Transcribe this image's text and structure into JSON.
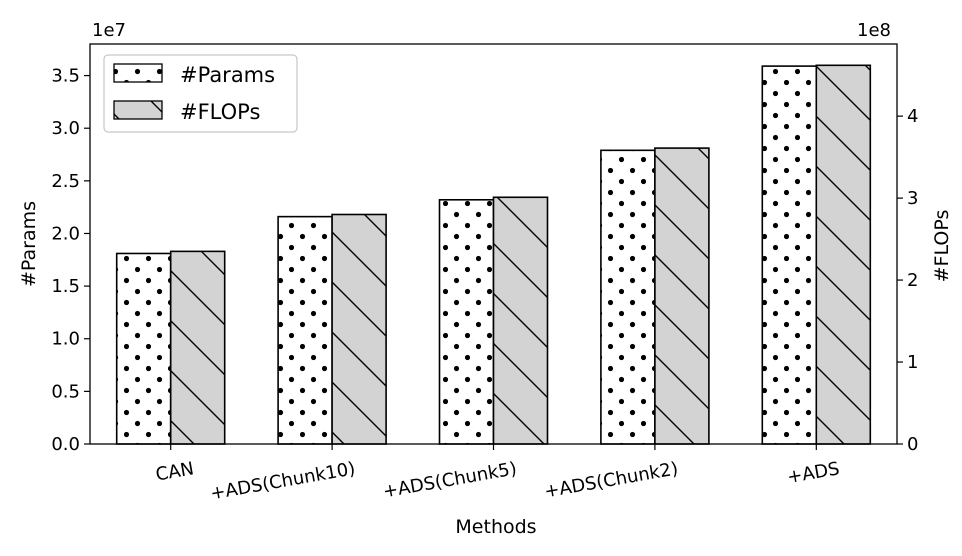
{
  "chart_data": {
    "type": "bar",
    "xlabel": "Methods",
    "categories": [
      "CAN",
      "+ADS(Chunk10)",
      "+ADS(Chunk5)",
      "+ADS(Chunk2)",
      "+ADS"
    ],
    "series": [
      {
        "name": "#Params",
        "axis": "left",
        "hatch": "dots",
        "color": "#ffffff",
        "values": [
          18100000,
          21600000,
          23200000,
          27900000,
          35900000
        ]
      },
      {
        "name": "#FLOPs",
        "axis": "right",
        "hatch": "diagonal",
        "color": "#d3d3d3",
        "values": [
          235000000,
          280000000,
          301000000,
          361000000,
          462000000
        ]
      }
    ],
    "left_axis": {
      "label": "#Params",
      "multiplier": "1e7",
      "ticks": [
        "0.0",
        "0.5",
        "1.0",
        "1.5",
        "2.0",
        "2.5",
        "3.0",
        "3.5"
      ],
      "ylim": [
        0,
        3.8
      ]
    },
    "right_axis": {
      "label": "#FLOPs",
      "multiplier": "1e8",
      "ticks": [
        "0",
        "1",
        "2",
        "3",
        "4"
      ],
      "ylim": [
        0,
        4.88
      ]
    },
    "legend": {
      "position": "upper-left"
    },
    "grid": false
  }
}
